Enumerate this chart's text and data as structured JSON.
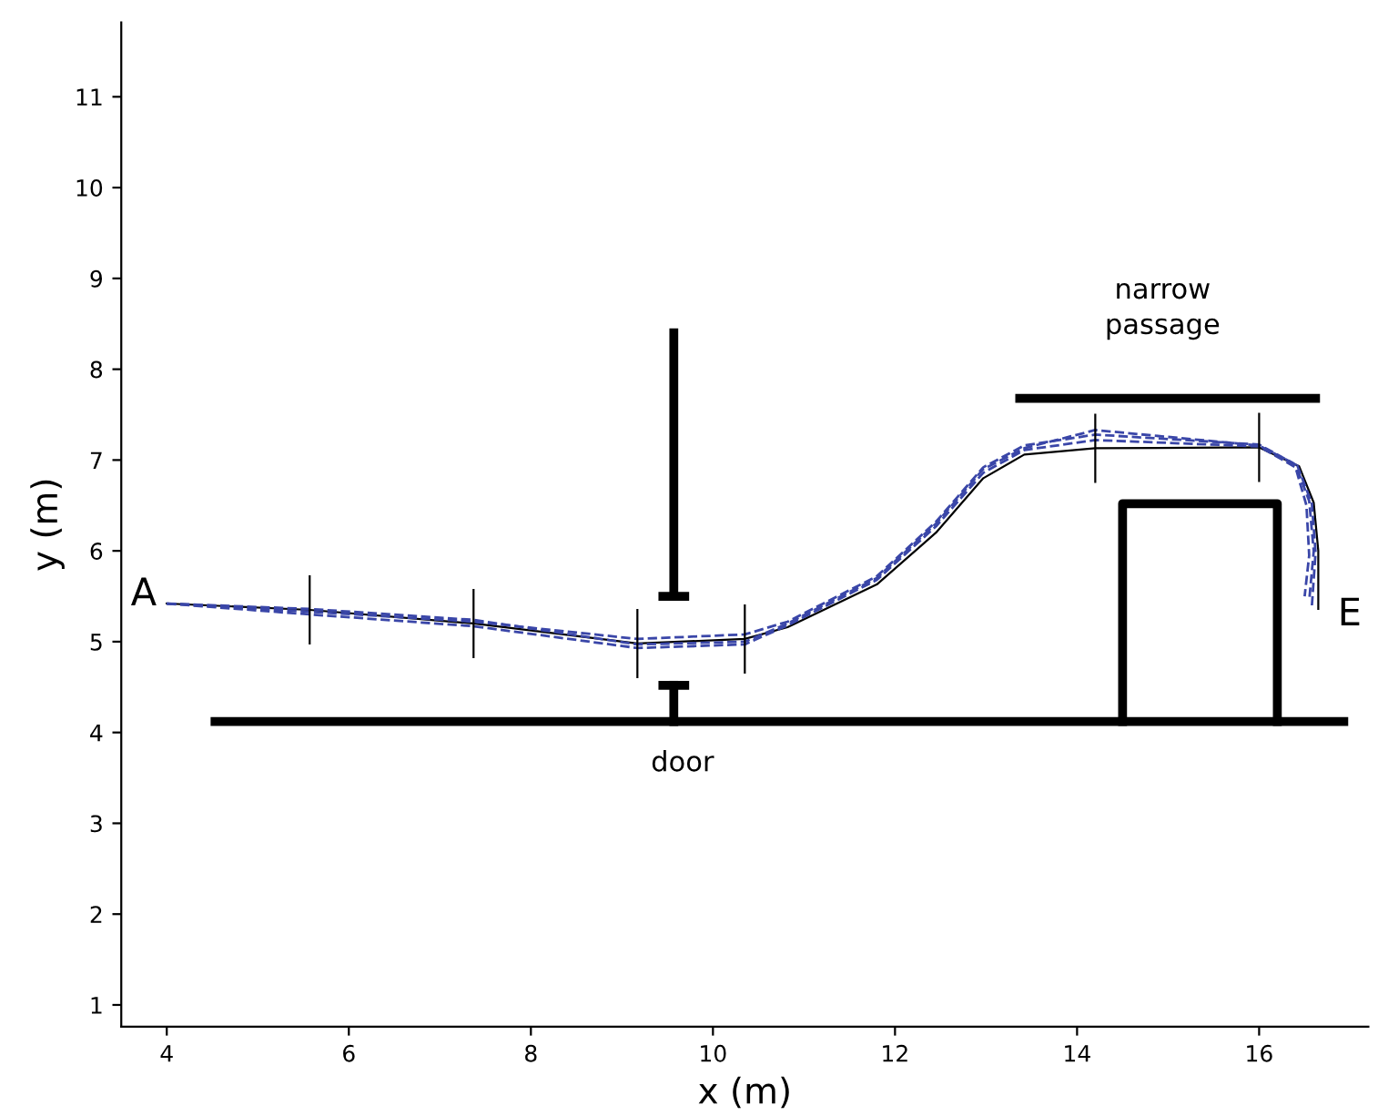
{
  "chart_data": {
    "type": "line",
    "xlabel": "x (m)",
    "ylabel": "y (m)",
    "xlim": [
      3.5,
      17.2
    ],
    "ylim": [
      0.76,
      11.82
    ],
    "xticks": [
      4,
      6,
      8,
      10,
      12,
      14,
      16
    ],
    "yticks": [
      1,
      2,
      3,
      4,
      5,
      6,
      7,
      8,
      9,
      10,
      11
    ],
    "grid": false,
    "legend": false,
    "series": [
      {
        "color": "#000000",
        "line_style": "solid",
        "x": [
          4,
          5.57,
          7.37,
          9.17,
          10.35,
          10.82,
          11.8,
          12.45,
          12.97,
          13.42,
          14.2,
          16.0,
          16.44,
          16.6,
          16.65,
          16.65
        ],
        "values": [
          5.42,
          5.35,
          5.2,
          4.98,
          5.03,
          5.16,
          5.63,
          6.2,
          6.8,
          7.06,
          7.13,
          7.14,
          6.93,
          6.53,
          6.0,
          5.36
        ]
      },
      {
        "color": "#3a46a8",
        "line_style": "dashed",
        "x": [
          4,
          5.57,
          7.37,
          9.17,
          10.35,
          10.82,
          11.8,
          12.45,
          12.97,
          13.42,
          14.2,
          16.0,
          16.4,
          16.55,
          16.6,
          16.55
        ],
        "values": [
          5.42,
          5.33,
          5.22,
          5.03,
          5.08,
          5.22,
          5.72,
          6.32,
          6.92,
          7.16,
          7.28,
          7.17,
          6.95,
          6.55,
          6.0,
          5.45
        ]
      },
      {
        "color": "#3a46a8",
        "line_style": "dashed",
        "x": [
          4,
          5.57,
          7.37,
          9.17,
          10.35,
          10.82,
          11.8,
          12.45,
          12.97,
          13.42,
          14.2,
          16.0,
          16.4,
          16.52,
          16.55,
          16.5
        ],
        "values": [
          5.42,
          5.3,
          5.17,
          4.93,
          4.97,
          5.18,
          5.68,
          6.27,
          6.86,
          7.11,
          7.22,
          7.15,
          6.92,
          6.5,
          5.95,
          5.5
        ]
      },
      {
        "color": "#3a46a8",
        "line_style": "dashed",
        "x": [
          4,
          5.57,
          7.37,
          9.17,
          10.35,
          10.82,
          11.8,
          12.45,
          12.97,
          13.42,
          14.2,
          16.0,
          16.42,
          16.58,
          16.62,
          16.58
        ],
        "values": [
          5.42,
          5.36,
          5.24,
          4.97,
          5.0,
          5.2,
          5.7,
          6.3,
          6.9,
          7.13,
          7.33,
          7.16,
          6.94,
          6.52,
          5.98,
          5.4
        ]
      },
      {
        "color": "#000000",
        "line_style": "solid",
        "x": [
          5.57,
          5.57,
          null,
          7.37,
          7.37,
          null,
          9.17,
          9.17,
          null,
          10.35,
          10.35,
          null,
          14.2,
          14.2,
          null,
          16.0,
          16.0
        ],
        "values": [
          4.98,
          5.72,
          null,
          4.83,
          5.57,
          null,
          4.61,
          5.35,
          null,
          4.66,
          5.4,
          null,
          6.76,
          7.5,
          null,
          6.77,
          7.51
        ]
      },
      {
        "color": "#000000",
        "line_style": "solid",
        "x": [
          4.53,
          16.93
        ],
        "values": [
          4.12,
          4.12
        ]
      },
      {
        "color": "#000000",
        "line_style": "solid",
        "x": [
          9.57,
          9.57
        ],
        "values": [
          8.4,
          5.5
        ]
      },
      {
        "color": "#000000",
        "line_style": "solid",
        "x": [
          9.45,
          9.69
        ],
        "values": [
          5.5,
          5.5
        ]
      },
      {
        "color": "#000000",
        "line_style": "solid",
        "x": [
          9.57,
          9.57
        ],
        "values": [
          4.12,
          4.52
        ]
      },
      {
        "color": "#000000",
        "line_style": "solid",
        "x": [
          9.45,
          9.69
        ],
        "values": [
          4.52,
          4.52
        ]
      },
      {
        "color": "#000000",
        "line_style": "solid",
        "x": [
          13.37,
          16.62
        ],
        "values": [
          7.68,
          7.68
        ]
      },
      {
        "color": "#000000",
        "line_style": "solid",
        "x": [
          14.5,
          14.5,
          16.2,
          16.2
        ],
        "values": [
          4.12,
          6.52,
          6.52,
          4.12
        ]
      }
    ],
    "annotations": [
      "A",
      "E",
      "door",
      "narrow\npassage"
    ]
  }
}
